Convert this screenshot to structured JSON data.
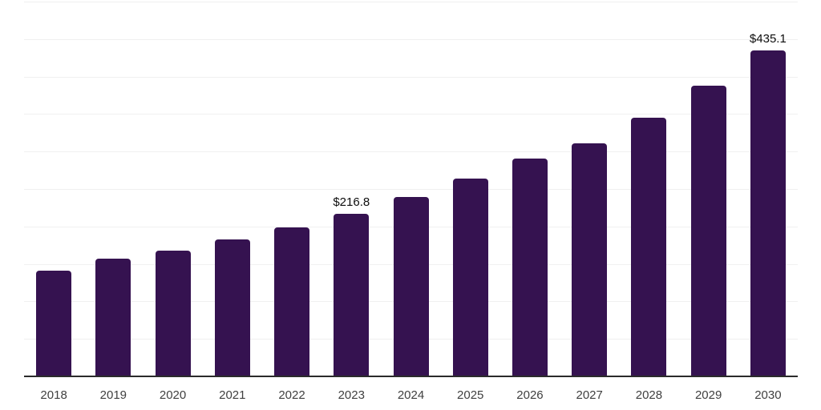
{
  "chart_data": {
    "type": "bar",
    "title": "",
    "xlabel": "",
    "ylabel": "",
    "categories": [
      "2018",
      "2019",
      "2020",
      "2021",
      "2022",
      "2023",
      "2024",
      "2025",
      "2026",
      "2027",
      "2028",
      "2029",
      "2030"
    ],
    "values": [
      141.0,
      157.4,
      168.1,
      182.4,
      198.7,
      216.8,
      238.8,
      264.2,
      290.3,
      310.6,
      345.4,
      387.5,
      435.1
    ],
    "labeled_points": [
      {
        "category": "2023",
        "label": "$216.8"
      },
      {
        "category": "2030",
        "label": "$435.1"
      }
    ],
    "ylim": [
      0,
      500
    ],
    "gridline_step": 50,
    "grid": true,
    "legend": false,
    "colors": {
      "bar": "#351250",
      "gridline": "#f0f0f0",
      "axis_line": "#2b2b2b",
      "tick_label": "#404040",
      "data_label": "#0d0d0d",
      "background": "#ffffff"
    }
  }
}
